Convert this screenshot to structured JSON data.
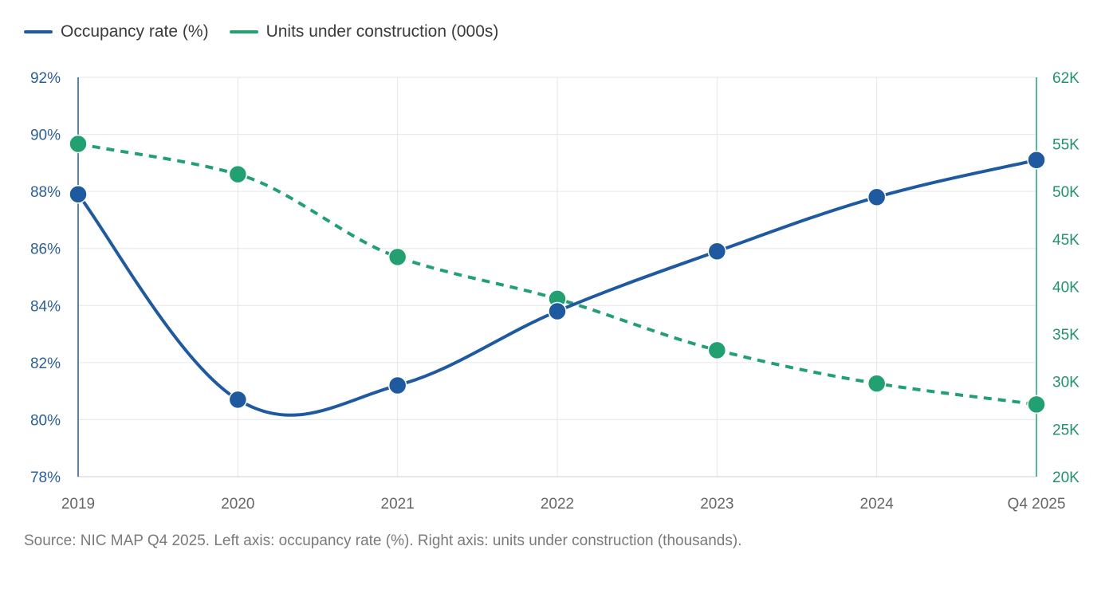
{
  "colors": {
    "occupancy": "#1f5aa0",
    "construction": "#22a072",
    "grid": "#e6e6e6",
    "left_axis": "#2b5f97",
    "right_axis": "#23926a"
  },
  "legend": [
    {
      "label": "Occupancy rate (%)",
      "color": "#1f5aa0"
    },
    {
      "label": "Units under construction (000s)",
      "color": "#22a072"
    }
  ],
  "source_note": "Source: NIC MAP Q4 2025. Left axis: occupancy rate (%). Right axis: units under construction (thousands).",
  "chart_data": {
    "type": "line",
    "categories": [
      "2019",
      "2020",
      "2021",
      "2022",
      "2023",
      "2024",
      "Q4 2025"
    ],
    "series": [
      {
        "name": "Occupancy rate (%)",
        "axis": "left",
        "style": "solid-smooth",
        "values": [
          87.9,
          80.7,
          81.2,
          83.8,
          85.9,
          87.8,
          89.1
        ]
      },
      {
        "name": "Units under construction (000s)",
        "axis": "right",
        "style": "dashed-smooth",
        "values": [
          55,
          51.8,
          43.1,
          38.7,
          33.3,
          29.8,
          27.6
        ]
      }
    ],
    "left_axis": {
      "min": 78,
      "max": 92,
      "ticks": [
        78,
        80,
        82,
        84,
        86,
        88,
        90,
        92
      ],
      "tick_labels": [
        "78%",
        "80%",
        "82%",
        "84%",
        "86%",
        "88%",
        "90%",
        "92%"
      ]
    },
    "right_axis": {
      "min": 20,
      "max": 62,
      "ticks": [
        20,
        25,
        30,
        35,
        40,
        45,
        50,
        55,
        62
      ],
      "tick_labels": [
        "20K",
        "25K",
        "30K",
        "35K",
        "40K",
        "45K",
        "50K",
        "55K",
        "62K"
      ]
    },
    "grid": true,
    "legend_position": "top-left"
  }
}
